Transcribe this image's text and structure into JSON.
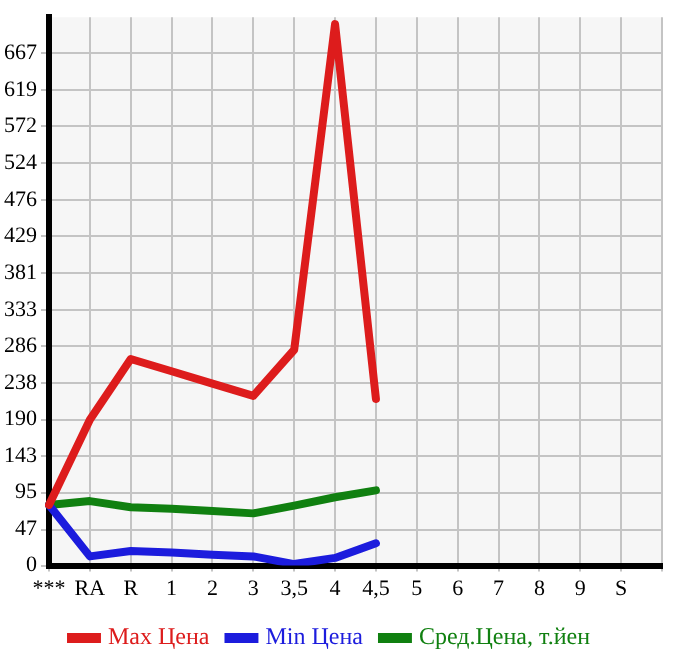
{
  "chart_data": {
    "type": "line",
    "categories": [
      "***",
      "RA",
      "R",
      "1",
      "2",
      "3",
      "3,5",
      "4",
      "4,5",
      "5",
      "6",
      "7",
      "8",
      "9",
      "S",
      null
    ],
    "ylim": [
      0,
      714
    ],
    "yticks": [
      0,
      47,
      95,
      143,
      190,
      238,
      286,
      333,
      381,
      429,
      476,
      524,
      572,
      619,
      667
    ],
    "series": [
      {
        "name": "Max Цена",
        "color": "#dd1c1c",
        "values": [
          79,
          190,
          269,
          253,
          237,
          221,
          281,
          705,
          217,
          null,
          null,
          null,
          null,
          null,
          null,
          null
        ]
      },
      {
        "name": "Min Цена",
        "color": "#1c1cdd",
        "values": [
          79,
          12,
          19,
          17,
          14,
          12,
          2,
          10,
          29,
          null,
          null,
          null,
          null,
          null,
          null,
          null
        ]
      },
      {
        "name": "Сред.Цена, т.йен",
        "color": "#108010",
        "values": [
          79,
          84,
          76,
          74,
          71,
          68,
          78,
          89,
          98,
          null,
          null,
          null,
          null,
          null,
          null,
          null
        ]
      }
    ],
    "grid": true,
    "legend": "bottom",
    "marker": "none",
    "line_style": "solid"
  }
}
